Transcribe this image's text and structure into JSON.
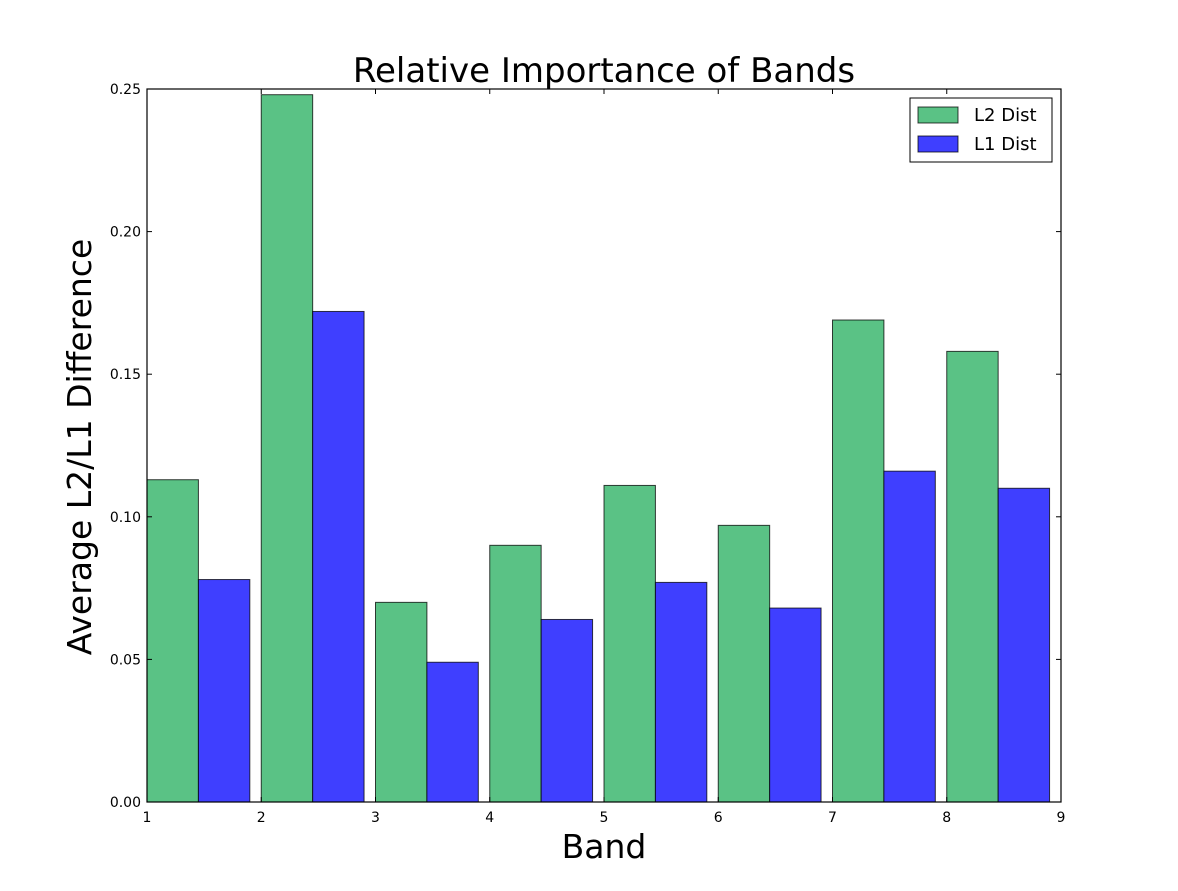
{
  "chart_data": {
    "type": "bar",
    "title": "Relative Importance of Bands",
    "xlabel": "Band",
    "ylabel": "Average L2/L1 Difference",
    "x_ticks": [
      "1",
      "2",
      "3",
      "4",
      "5",
      "6",
      "7",
      "8",
      "9"
    ],
    "y_ticks": [
      "0.00",
      "0.05",
      "0.10",
      "0.15",
      "0.20",
      "0.25"
    ],
    "xlim": [
      1,
      9
    ],
    "ylim": [
      0,
      0.25
    ],
    "categories": [
      1,
      2,
      3,
      4,
      5,
      6,
      7,
      8
    ],
    "series": [
      {
        "name": "L2 Dist",
        "color": "#5ac285",
        "values": [
          0.113,
          0.248,
          0.07,
          0.09,
          0.111,
          0.097,
          0.169,
          0.158
        ]
      },
      {
        "name": "L1 Dist",
        "color": "#3f3fff",
        "values": [
          0.078,
          0.172,
          0.049,
          0.064,
          0.077,
          0.068,
          0.116,
          0.11
        ]
      }
    ],
    "legend_position": "top-right",
    "grid": false
  }
}
